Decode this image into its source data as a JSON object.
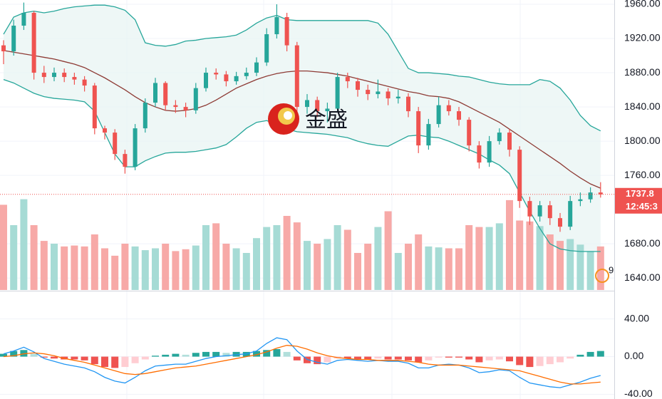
{
  "watermark": "金盛",
  "badge": "9",
  "chart_data": [
    {
      "type": "candlestick",
      "open": [
        1912,
        1905,
        1935,
        1950,
        1880,
        1875,
        1880,
        1875,
        1872,
        1865,
        1815,
        1810,
        1785,
        1770,
        1815,
        1845,
        1868,
        1842,
        1840,
        1836,
        1862,
        1880,
        1878,
        1870,
        1876,
        1880,
        1892,
        1925,
        1945,
        1912,
        1840,
        1848,
        1835,
        1838,
        1875,
        1870,
        1860,
        1855,
        1858,
        1850,
        1852,
        1835,
        1795,
        1820,
        1842,
        1835,
        1825,
        1795,
        1775,
        1800,
        1810,
        1790,
        1730,
        1712,
        1725,
        1710,
        1700,
        1730,
        1732,
        1740
      ],
      "high": [
        1918,
        1942,
        1962,
        1952,
        1888,
        1886,
        1885,
        1880,
        1876,
        1868,
        1818,
        1814,
        1790,
        1820,
        1850,
        1874,
        1870,
        1848,
        1845,
        1868,
        1886,
        1885,
        1882,
        1881,
        1886,
        1898,
        1932,
        1960,
        1950,
        1916,
        1855,
        1852,
        1845,
        1880,
        1880,
        1874,
        1866,
        1872,
        1862,
        1860,
        1856,
        1840,
        1826,
        1852,
        1848,
        1840,
        1828,
        1800,
        1806,
        1815,
        1814,
        1794,
        1735,
        1730,
        1730,
        1716,
        1736,
        1740,
        1746,
        1752
      ],
      "low": [
        1890,
        1900,
        1930,
        1872,
        1868,
        1870,
        1869,
        1866,
        1858,
        1808,
        1802,
        1778,
        1762,
        1766,
        1810,
        1840,
        1836,
        1833,
        1828,
        1832,
        1858,
        1872,
        1864,
        1866,
        1872,
        1876,
        1888,
        1920,
        1905,
        1834,
        1832,
        1828,
        1822,
        1834,
        1862,
        1852,
        1848,
        1850,
        1842,
        1844,
        1828,
        1786,
        1790,
        1816,
        1830,
        1818,
        1788,
        1768,
        1770,
        1796,
        1782,
        1722,
        1702,
        1706,
        1702,
        1694,
        1696,
        1724,
        1728,
        1734
      ],
      "close": [
        1905,
        1935,
        1950,
        1880,
        1875,
        1880,
        1875,
        1872,
        1865,
        1815,
        1810,
        1785,
        1770,
        1815,
        1845,
        1868,
        1842,
        1840,
        1836,
        1862,
        1880,
        1878,
        1870,
        1876,
        1880,
        1892,
        1925,
        1945,
        1912,
        1840,
        1848,
        1835,
        1838,
        1875,
        1870,
        1860,
        1855,
        1858,
        1850,
        1852,
        1835,
        1795,
        1820,
        1842,
        1835,
        1825,
        1795,
        1775,
        1800,
        1810,
        1790,
        1730,
        1712,
        1725,
        1710,
        1700,
        1730,
        1732,
        1740,
        1737.8
      ],
      "volume": [
        92,
        70,
        98,
        70,
        53,
        50,
        47,
        48,
        47,
        60,
        45,
        37,
        50,
        47,
        43,
        45,
        50,
        42,
        44,
        48,
        70,
        72,
        50,
        45,
        40,
        56,
        68,
        70,
        80,
        73,
        53,
        50,
        55,
        70,
        65,
        40,
        50,
        68,
        85,
        40,
        50,
        60,
        47,
        46,
        45,
        45,
        70,
        68,
        68,
        72,
        97,
        75,
        74,
        69,
        60,
        53,
        55,
        49,
        42,
        47
      ],
      "bands": {
        "upper": [
          1925,
          1945,
          1950,
          1952,
          1950,
          1952,
          1955,
          1957,
          1958,
          1959,
          1959,
          1957,
          1953,
          1942,
          1915,
          1912,
          1911,
          1913,
          1917,
          1918,
          1920,
          1921,
          1922,
          1924,
          1930,
          1938,
          1944,
          1947,
          1942,
          1941,
          1941,
          1941,
          1941,
          1941,
          1941,
          1941,
          1941,
          1938,
          1925,
          1905,
          1885,
          1880,
          1880,
          1879,
          1878,
          1876,
          1875,
          1872,
          1869,
          1867,
          1866,
          1866,
          1866,
          1872,
          1870,
          1862,
          1848,
          1830,
          1818,
          1812
        ],
        "middle": [
          1906,
          1904,
          1902,
          1900,
          1898,
          1896,
          1893,
          1890,
          1886,
          1880,
          1874,
          1867,
          1860,
          1852,
          1845,
          1840,
          1836,
          1835,
          1836,
          1838,
          1842,
          1848,
          1855,
          1862,
          1867,
          1872,
          1876,
          1879,
          1881,
          1882,
          1882,
          1881,
          1880,
          1878,
          1876,
          1873,
          1870,
          1867,
          1864,
          1861,
          1858,
          1856,
          1853,
          1852,
          1850,
          1846,
          1840,
          1834,
          1828,
          1822,
          1814,
          1806,
          1798,
          1790,
          1782,
          1774,
          1765,
          1757,
          1750,
          1745
        ],
        "lower": [
          1872,
          1868,
          1862,
          1856,
          1852,
          1850,
          1849,
          1848,
          1846,
          1835,
          1810,
          1785,
          1770,
          1770,
          1777,
          1782,
          1786,
          1787,
          1787,
          1788,
          1790,
          1792,
          1796,
          1805,
          1815,
          1822,
          1824,
          1820,
          1814,
          1811,
          1810,
          1809,
          1808,
          1806,
          1804,
          1800,
          1797,
          1795,
          1794,
          1800,
          1806,
          1807,
          1805,
          1804,
          1800,
          1795,
          1790,
          1785,
          1778,
          1772,
          1762,
          1740,
          1718,
          1698,
          1680,
          1674,
          1672,
          1671,
          1671,
          1671
        ]
      },
      "colors": {
        "up": "#26a69a",
        "down": "#ef5350",
        "volume_up": "#a6dbd5",
        "volume_down": "#f7a9a7",
        "band": "#26a69a",
        "middle": "#8e3b35",
        "band_fill": "#e7f4f2"
      },
      "last_label": "1737.8",
      "countdown": "12:45:3",
      "ylim": [
        1626,
        1965
      ],
      "yticks": [
        {
          "value": 1640,
          "label": "1640.00"
        },
        {
          "value": 1680,
          "label": "1680.00"
        },
        {
          "value": 1760,
          "label": "1760.00"
        },
        {
          "value": 1800,
          "label": "1800.00"
        },
        {
          "value": 1840,
          "label": "1840.00"
        },
        {
          "value": 1880,
          "label": "1880.00"
        },
        {
          "value": 1920,
          "label": "1920.00"
        },
        {
          "value": 1960,
          "label": "1960.00"
        }
      ],
      "grid": true
    },
    {
      "type": "macd",
      "histogram": [
        3,
        6,
        7,
        3,
        -1,
        -2,
        -3,
        -3,
        -4,
        -8,
        -11,
        -12,
        -11,
        -7,
        -3,
        1,
        2,
        3,
        2,
        4,
        5,
        5,
        4,
        5,
        5,
        6,
        7,
        8,
        5,
        -4,
        -7,
        -8,
        -6,
        -2,
        -2,
        -3,
        -3,
        -2,
        -3,
        -3,
        -4,
        -6,
        -4,
        -1,
        -1,
        -1,
        -3,
        -6,
        -4,
        -3,
        -5,
        -9,
        -11,
        -10,
        -8,
        -6,
        -2,
        2,
        5,
        6
      ],
      "series": [
        {
          "color": "#2196f3",
          "values": [
            3,
            6,
            10,
            5,
            -2,
            -5,
            -8,
            -10,
            -12,
            -16,
            -22,
            -26,
            -28,
            -22,
            -15,
            -10,
            -9,
            -8,
            -8,
            -5,
            -2,
            0,
            1,
            2,
            3,
            6,
            14,
            20,
            18,
            6,
            -3,
            -6,
            -8,
            -4,
            -3,
            -4,
            -5,
            -4,
            -5,
            -5,
            -7,
            -12,
            -12,
            -9,
            -8,
            -9,
            -12,
            -17,
            -16,
            -14,
            -15,
            -22,
            -28,
            -30,
            -32,
            -33,
            -30,
            -27,
            -23,
            -20
          ]
        },
        {
          "color": "#ff6d00",
          "values": [
            0,
            1,
            3,
            4,
            3,
            1,
            -2,
            -4,
            -6,
            -9,
            -12,
            -15,
            -18,
            -19,
            -18,
            -16,
            -14,
            -12,
            -11,
            -10,
            -8,
            -6,
            -4,
            -2,
            0,
            2,
            5,
            9,
            12,
            11,
            8,
            4,
            1,
            -1,
            -2,
            -3,
            -3,
            -4,
            -4,
            -4,
            -5,
            -6,
            -8,
            -9,
            -9,
            -9,
            -10,
            -11,
            -12,
            -13,
            -14,
            -15,
            -18,
            -21,
            -24,
            -27,
            -29,
            -29,
            -28,
            -27
          ]
        }
      ],
      "colors": {
        "pos_up": "#26a69a",
        "pos_down": "#b2dfdb",
        "neg_down": "#ef5350",
        "neg_up": "#ffcdd2"
      },
      "ylim": [
        -45,
        67
      ],
      "yticks": [
        {
          "value": -40,
          "label": "-40.00"
        },
        {
          "value": 0,
          "label": "0.00"
        },
        {
          "value": 40,
          "label": "40.00"
        }
      ],
      "grid": true
    }
  ]
}
